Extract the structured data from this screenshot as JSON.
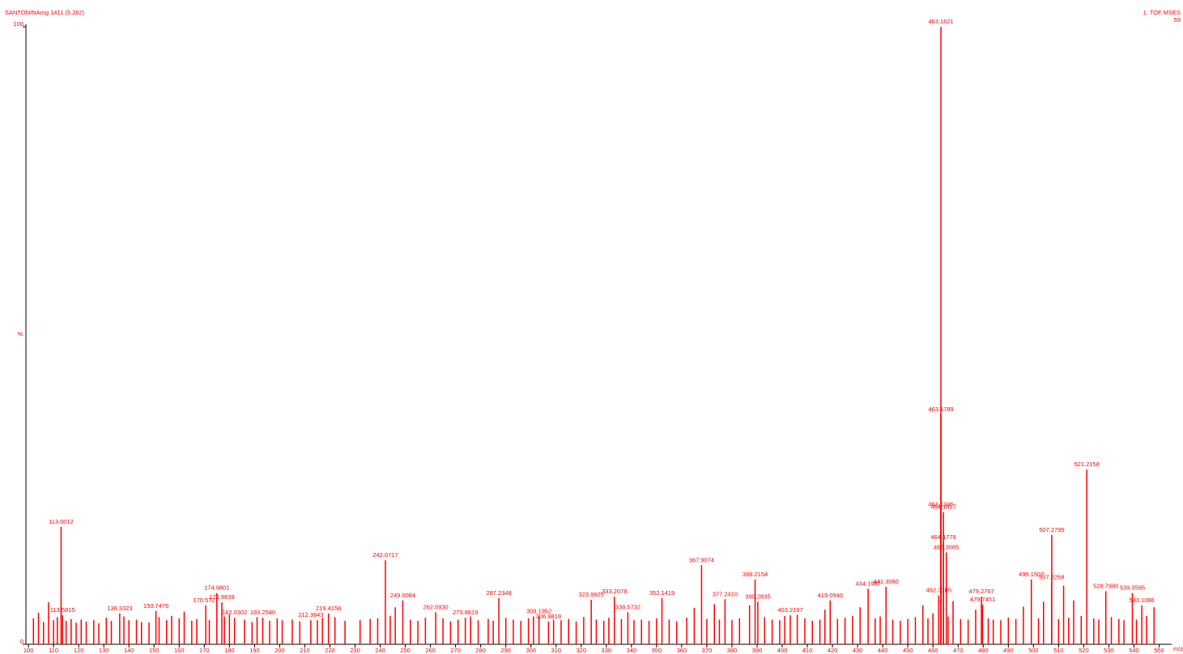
{
  "chart_data": {
    "type": "stick",
    "title": "SANTONINAmg 1411 (5.282)",
    "subtitle": "1: TOF MSES",
    "annotation": "59",
    "x_label": "m/z",
    "y_label": "%",
    "color": "#ff0000",
    "xlim": [
      99,
      555
    ],
    "ylim": [
      0,
      100
    ],
    "xticks": [
      100,
      110,
      120,
      130,
      140,
      150,
      160,
      170,
      180,
      190,
      200,
      210,
      220,
      230,
      240,
      250,
      260,
      270,
      280,
      290,
      300,
      310,
      320,
      330,
      340,
      350,
      360,
      370,
      380,
      390,
      400,
      410,
      420,
      430,
      440,
      450,
      460,
      470,
      480,
      490,
      500,
      510,
      520,
      530,
      540,
      550
    ],
    "yticks": [
      0,
      100
    ],
    "x": [
      113.0012,
      113.5815,
      136.3323,
      150.7476,
      170.5727,
      174.9801,
      176.9839,
      182.0302,
      193.258,
      212.3843,
      219.4158,
      242.0717,
      249.0084,
      262.093,
      273.8819,
      287.2348,
      303.1952,
      306.9819,
      323.9925,
      333.2078,
      338.5732,
      352.1419,
      367.9074,
      377.241,
      389.2154,
      390.2835,
      403.2197,
      419.094,
      434.1987,
      441.308,
      462.3105,
      463.1336,
      463.1621,
      463.1789,
      464.1617,
      464.1778,
      465.3085,
      479.2767,
      479.7451,
      499.1507,
      507.2795,
      507.2258,
      521.2158,
      528.798,
      539.3595,
      543.1086,
      102,
      104,
      106,
      108,
      110,
      111.5,
      115,
      117,
      119,
      121,
      123,
      126,
      128,
      131,
      133,
      138,
      140,
      143,
      145,
      148,
      152,
      155,
      157,
      160,
      162,
      165,
      167,
      172,
      178,
      180,
      186,
      189,
      191,
      196,
      199,
      201,
      205,
      208,
      215,
      217,
      222,
      226,
      232,
      236,
      239,
      244,
      246,
      252,
      255,
      258,
      265,
      268,
      271,
      276,
      279,
      283,
      285,
      290,
      293,
      296,
      299,
      301,
      309,
      312,
      315,
      318,
      321,
      326,
      329,
      331,
      336,
      341,
      344,
      347,
      350,
      355,
      358,
      362,
      365,
      370,
      373,
      375,
      380,
      383,
      387,
      393,
      396,
      399,
      401,
      406,
      409,
      412,
      415,
      417,
      422,
      425,
      428,
      431,
      437,
      439,
      444,
      447,
      450,
      453,
      456,
      458,
      460,
      466,
      468,
      471,
      474,
      477,
      482,
      484,
      487,
      490,
      493,
      496,
      502,
      504,
      510,
      512,
      514,
      516,
      519,
      524,
      526,
      531,
      534,
      536,
      541,
      545,
      548
    ],
    "values": [
      19.0,
      4.7,
      5.0,
      5.4,
      6.3,
      8.3,
      6.8,
      4.3,
      4.3,
      3.9,
      5.0,
      13.6,
      7.1,
      5.2,
      4.3,
      7.5,
      4.5,
      3.7,
      7.2,
      7.7,
      5.2,
      7.5,
      12.8,
      7.3,
      10.5,
      6.9,
      4.7,
      7.1,
      9.0,
      9.3,
      7.9,
      21.8,
      100,
      37.2,
      21.4,
      16.5,
      14.9,
      7.7,
      6.4,
      10.5,
      17.7,
      10.0,
      28.3,
      8.6,
      8.3,
      6.3,
      4.2,
      5.1,
      3.6,
      6.8,
      3.9,
      4.4,
      3.8,
      4.1,
      3.5,
      4.0,
      3.7,
      3.9,
      3.4,
      4.3,
      3.8,
      4.5,
      3.9,
      4.0,
      3.6,
      3.5,
      4.4,
      3.9,
      4.6,
      4.2,
      5.3,
      3.8,
      4.1,
      3.9,
      4.5,
      4.8,
      4.0,
      3.6,
      4.4,
      3.8,
      4.2,
      3.9,
      4.0,
      3.7,
      3.9,
      4.3,
      4.4,
      3.8,
      3.9,
      4.1,
      4.2,
      4.6,
      6.0,
      4.0,
      3.8,
      4.3,
      4.2,
      3.7,
      4.0,
      4.5,
      3.9,
      4.1,
      3.8,
      4.3,
      4.0,
      3.8,
      4.2,
      4.5,
      4.0,
      3.9,
      4.1,
      3.7,
      4.4,
      4.0,
      3.8,
      4.3,
      4.1,
      3.9,
      4.0,
      3.8,
      4.2,
      4.0,
      3.7,
      4.3,
      5.9,
      4.1,
      6.5,
      4.0,
      3.9,
      4.2,
      6.3,
      4.4,
      4.0,
      3.9,
      4.6,
      4.8,
      4.2,
      3.8,
      4.0,
      5.6,
      4.1,
      4.3,
      4.6,
      6.0,
      4.2,
      4.5,
      4.0,
      3.8,
      4.1,
      4.4,
      6.3,
      4.2,
      5.0,
      4.5,
      7.0,
      4.1,
      4.0,
      5.6,
      4.2,
      4.0,
      3.9,
      4.3,
      4.1,
      6.1,
      4.2,
      6.9,
      4.1,
      9.5,
      4.3,
      7.1,
      4.6,
      4.2,
      4.0,
      4.4,
      4.1,
      3.9,
      4.0,
      4.6,
      6.0
    ],
    "labels": [
      "113.0012",
      "113.5815",
      "136.3323",
      "150.7476",
      "170.5727",
      "174.9801",
      "176.9839",
      "182.0302",
      "193.2580",
      "212.3843",
      "219.4158",
      "242.0717",
      "249.0084",
      "262.0930",
      "273.8819",
      "287.2348",
      "303.1952",
      "306.9819",
      "323.9925",
      "333.2078",
      "338.5732",
      "352.1419",
      "367.9074",
      "377.2410",
      "389.2154",
      "390.2835",
      "403.2197",
      "419.0940",
      "434.1987",
      "441.3080",
      "462.3105",
      "463.1336",
      "463.1621",
      "463.1789",
      "464.1617",
      "464.1778",
      "465.3085",
      "479.2767",
      "479.7451",
      "499.1507",
      "507.2795",
      "507.2258",
      "521.2158",
      "528.7980",
      "539.3595",
      "543.1086"
    ]
  }
}
